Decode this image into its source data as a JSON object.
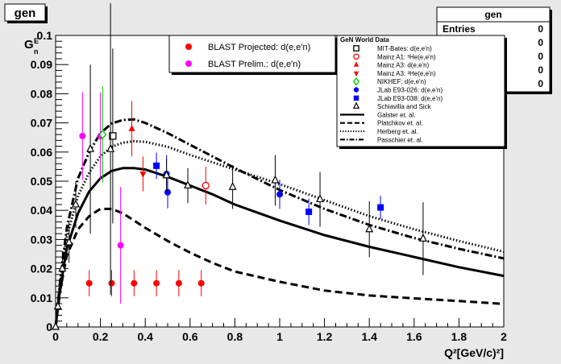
{
  "canvas": {
    "title": "gen",
    "stats": {
      "title": "gen",
      "entries_label": "Entries",
      "entries_value": "0",
      "extra_values": [
        "0",
        "0",
        "0",
        "0"
      ]
    }
  },
  "chart_data": {
    "type": "scatter",
    "title": "",
    "xlabel": "Q²[GeV/c)²]",
    "ylabel": "G_n^E",
    "xlim": [
      0,
      2
    ],
    "ylim": [
      0,
      0.1
    ],
    "xticks": [
      "0",
      "0.2",
      "0.4",
      "0.6",
      "0.8",
      "1",
      "1.2",
      "1.4",
      "1.6",
      "1.8",
      "2"
    ],
    "yticks": [
      "0",
      "0.01",
      "0.02",
      "0.03",
      "0.04",
      "0.05",
      "0.06",
      "0.07",
      "0.08",
      "0.09",
      "0.1"
    ],
    "legend_blast": [
      {
        "label": "BLAST Projected: d(e,e'n)",
        "color": "#ff0000"
      },
      {
        "label": "BLAST Prelim.: d(e,e'n)",
        "color": "#ff00ff"
      }
    ],
    "legend_world": {
      "title": "GeN World Data",
      "entries": [
        {
          "label": "MIT-Bates: d(e,e'n)",
          "marker": "open-square",
          "color": "#000000"
        },
        {
          "label": "Mainz A1: ³He(e,e'n)",
          "marker": "open-circle",
          "color": "#ff0000"
        },
        {
          "label": "Mainz A3: d(e,e'n)",
          "marker": "triangle-up",
          "color": "#ff0000"
        },
        {
          "label": "Mainz A3: ³He(e,e'n)",
          "marker": "triangle-down",
          "color": "#ff0000"
        },
        {
          "label": "NIKHEF: d(e,e'n)",
          "marker": "open-diamond",
          "color": "#00cc00"
        },
        {
          "label": "JLab E93-026: d(e,e'n)",
          "marker": "circle",
          "color": "#0000ff"
        },
        {
          "label": "JLab E93-038: d(e,e'n)",
          "marker": "square",
          "color": "#0000ff"
        },
        {
          "label": "Schiavilla and Sick",
          "marker": "open-triangle",
          "color": "#000000"
        },
        {
          "label": "Galster et. al.",
          "marker": "line-solid",
          "color": "#000000"
        },
        {
          "label": "Platchkov et. al.",
          "marker": "line-dashed",
          "color": "#000000"
        },
        {
          "label": "Herberg et. al.",
          "marker": "line-dotted",
          "color": "#000000"
        },
        {
          "label": "Passchier et. al.",
          "marker": "line-dashdot",
          "color": "#000000"
        }
      ]
    },
    "series": [
      {
        "name": "BLAST Projected: d(e,e'n)",
        "marker": "circle",
        "color": "#ff0000",
        "points": [
          [
            0.15,
            0.015,
            0.0045
          ],
          [
            0.25,
            0.015,
            0.0045
          ],
          [
            0.35,
            0.015,
            0.0045
          ],
          [
            0.45,
            0.015,
            0.0045
          ],
          [
            0.55,
            0.015,
            0.0045
          ],
          [
            0.65,
            0.015,
            0.0045
          ]
        ]
      },
      {
        "name": "BLAST Prelim.: d(e,e'n)",
        "marker": "circle",
        "color": "#ff00ff",
        "points": [
          [
            0.12,
            0.0655,
            0.015
          ],
          [
            0.2,
            0.0655,
            0.015
          ],
          [
            0.29,
            0.028,
            0.02
          ]
        ]
      },
      {
        "name": "MIT-Bates: d(e,e'n)",
        "marker": "open-square",
        "color": "#000000",
        "points": [
          [
            0.255,
            0.0655,
            0.03
          ]
        ]
      },
      {
        "name": "Mainz A1: ³He(e,e'n)",
        "marker": "open-circle",
        "color": "#ff0000",
        "points": [
          [
            0.67,
            0.0485,
            0.0065
          ]
        ]
      },
      {
        "name": "Mainz A3: d(e,e'n)",
        "marker": "triangle-up",
        "color": "#ff0000",
        "points": [
          [
            0.34,
            0.068,
            0.0095
          ]
        ]
      },
      {
        "name": "Mainz A3: ³He(e,e'n)",
        "marker": "triangle-down",
        "color": "#ff0000",
        "points": [
          [
            0.39,
            0.0525,
            0.006
          ]
        ]
      },
      {
        "name": "NIKHEF: d(e,e'n)",
        "marker": "open-diamond",
        "color": "#00cc00",
        "points": [
          [
            0.21,
            0.066,
            0.0165
          ]
        ]
      },
      {
        "name": "JLab E93-026: d(e,e'n)",
        "marker": "circle",
        "color": "#0000ff",
        "points": [
          [
            0.495,
            0.0525,
            0.0065
          ],
          [
            0.5,
            0.0462,
            0.0055
          ],
          [
            1.0,
            0.0455,
            0.005
          ]
        ]
      },
      {
        "name": "JLab E93-038: d(e,e'n)",
        "marker": "square",
        "color": "#0000ff",
        "points": [
          [
            0.45,
            0.0553,
            0.0045
          ],
          [
            1.13,
            0.0395,
            0.0045
          ],
          [
            1.45,
            0.041,
            0.004
          ]
        ]
      },
      {
        "name": "Schiavilla and Sick",
        "marker": "open-triangle",
        "color": "#000000",
        "points": [
          [
            0.0,
            0.0,
            0.0
          ],
          [
            0.01,
            0.007,
            0.003
          ],
          [
            0.03,
            0.02,
            0.006
          ],
          [
            0.06,
            0.029,
            0.007
          ],
          [
            0.09,
            0.042,
            0.008
          ],
          [
            0.155,
            0.061,
            0.029
          ],
          [
            0.245,
            0.061,
            0.05
          ],
          [
            0.495,
            0.052,
            0.0055
          ],
          [
            0.59,
            0.0485,
            0.006
          ],
          [
            0.79,
            0.048,
            0.0075
          ],
          [
            0.98,
            0.0503,
            0.0087
          ],
          [
            1.18,
            0.0438,
            0.0094
          ],
          [
            1.4,
            0.0335,
            0.0096
          ],
          [
            1.64,
            0.0303,
            0.0125
          ]
        ]
      }
    ],
    "curves": [
      {
        "name": "Galster et. al.",
        "style": "solid",
        "points": [
          [
            0,
            0
          ],
          [
            0.02,
            0.013
          ],
          [
            0.05,
            0.027
          ],
          [
            0.1,
            0.039
          ],
          [
            0.15,
            0.0465
          ],
          [
            0.2,
            0.051
          ],
          [
            0.25,
            0.0535
          ],
          [
            0.3,
            0.0545
          ],
          [
            0.35,
            0.0545
          ],
          [
            0.4,
            0.054
          ],
          [
            0.5,
            0.0515
          ],
          [
            0.6,
            0.0485
          ],
          [
            0.7,
            0.0455
          ],
          [
            0.8,
            0.042
          ],
          [
            1.0,
            0.0365
          ],
          [
            1.2,
            0.0315
          ],
          [
            1.4,
            0.0275
          ],
          [
            1.6,
            0.024
          ],
          [
            1.8,
            0.0205
          ],
          [
            2.0,
            0.0175
          ]
        ]
      },
      {
        "name": "Platchkov et. al.",
        "style": "dashed",
        "points": [
          [
            0,
            0
          ],
          [
            0.02,
            0.0125
          ],
          [
            0.05,
            0.0245
          ],
          [
            0.1,
            0.0335
          ],
          [
            0.15,
            0.038
          ],
          [
            0.2,
            0.0405
          ],
          [
            0.25,
            0.0405
          ],
          [
            0.3,
            0.039
          ],
          [
            0.35,
            0.0365
          ],
          [
            0.4,
            0.034
          ],
          [
            0.5,
            0.0295
          ],
          [
            0.6,
            0.0255
          ],
          [
            0.7,
            0.022
          ],
          [
            0.8,
            0.019
          ],
          [
            1.0,
            0.0155
          ],
          [
            1.2,
            0.0125
          ],
          [
            1.4,
            0.0108
          ],
          [
            1.6,
            0.0098
          ],
          [
            1.8,
            0.0089
          ],
          [
            2.0,
            0.0079
          ]
        ]
      },
      {
        "name": "Herberg et. al.",
        "style": "dotted",
        "points": [
          [
            0,
            0
          ],
          [
            0.02,
            0.015
          ],
          [
            0.05,
            0.031
          ],
          [
            0.1,
            0.045
          ],
          [
            0.15,
            0.053
          ],
          [
            0.2,
            0.0585
          ],
          [
            0.25,
            0.0618
          ],
          [
            0.3,
            0.0632
          ],
          [
            0.35,
            0.0637
          ],
          [
            0.4,
            0.0635
          ],
          [
            0.5,
            0.0618
          ],
          [
            0.6,
            0.059
          ],
          [
            0.7,
            0.0565
          ],
          [
            0.8,
            0.054
          ],
          [
            1.0,
            0.049
          ],
          [
            1.2,
            0.0435
          ],
          [
            1.4,
            0.038
          ],
          [
            1.6,
            0.0335
          ],
          [
            1.8,
            0.0295
          ],
          [
            2.0,
            0.0258
          ]
        ]
      },
      {
        "name": "Passchier et. al.",
        "style": "dashdot",
        "points": [
          [
            0,
            0
          ],
          [
            0.02,
            0.016
          ],
          [
            0.05,
            0.034
          ],
          [
            0.1,
            0.051
          ],
          [
            0.15,
            0.06
          ],
          [
            0.2,
            0.0665
          ],
          [
            0.25,
            0.0698
          ],
          [
            0.3,
            0.071
          ],
          [
            0.35,
            0.0712
          ],
          [
            0.4,
            0.07
          ],
          [
            0.5,
            0.0665
          ],
          [
            0.6,
            0.0625
          ],
          [
            0.7,
            0.0585
          ],
          [
            0.8,
            0.0545
          ],
          [
            1.0,
            0.047
          ],
          [
            1.2,
            0.0405
          ],
          [
            1.4,
            0.035
          ],
          [
            1.6,
            0.0305
          ],
          [
            1.8,
            0.0268
          ],
          [
            2.0,
            0.0235
          ]
        ]
      }
    ]
  }
}
